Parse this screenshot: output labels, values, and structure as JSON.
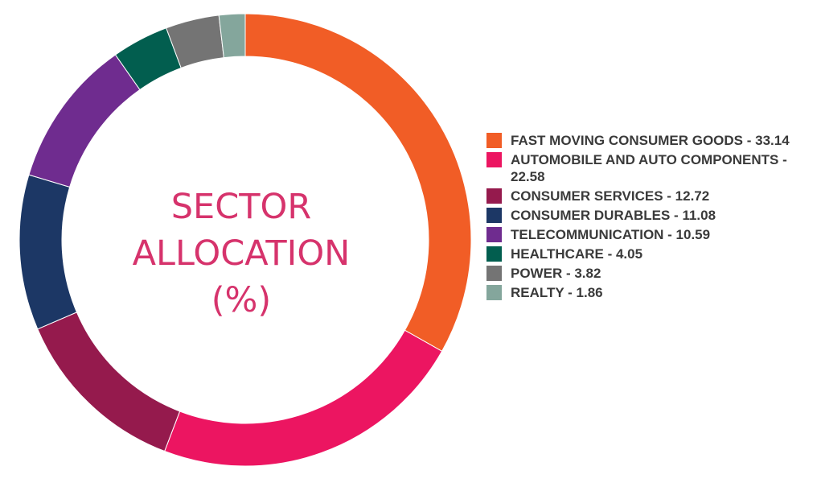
{
  "chart_data": {
    "type": "pie",
    "title_lines": [
      "SECTOR",
      "ALLOCATION",
      "(%)"
    ],
    "series": [
      {
        "label": "FAST MOVING CONSUMER GOODS - 33.14",
        "value": 33.14,
        "color": "#f15d26"
      },
      {
        "label": "AUTOMOBILE AND AUTO COMPONENTS - 22.58",
        "value": 22.58,
        "color": "#ec1561"
      },
      {
        "label": "CONSUMER SERVICES - 12.72",
        "value": 12.72,
        "color": "#951a4d"
      },
      {
        "label": "CONSUMER DURABLES - 11.08",
        "value": 11.08,
        "color": "#1c3765"
      },
      {
        "label": "TELECOMMUNICATION - 10.59",
        "value": 10.59,
        "color": "#6f2c8f"
      },
      {
        "label": "HEALTHCARE - 4.05",
        "value": 4.05,
        "color": "#025e4f"
      },
      {
        "label": "POWER - 3.82",
        "value": 3.82,
        "color": "#747474"
      },
      {
        "label": "REALTY - 1.86",
        "value": 1.86,
        "color": "#84a69c"
      }
    ],
    "legend_position": "right"
  }
}
